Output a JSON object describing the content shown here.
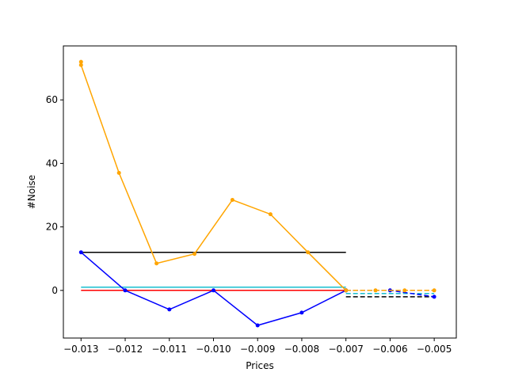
{
  "chart_data": {
    "type": "line",
    "title": "",
    "xlabel": "Prices",
    "ylabel": "#Noise",
    "xlim": [
      -0.0134,
      -0.0045
    ],
    "ylim": [
      -15,
      77
    ],
    "xticks": [
      -0.013,
      -0.012,
      -0.011,
      -0.01,
      -0.009,
      -0.008,
      -0.007,
      -0.006,
      -0.005
    ],
    "xtick_labels": [
      "−0.013",
      "−0.012",
      "−0.011",
      "−0.010",
      "−0.009",
      "−0.008",
      "−0.007",
      "−0.006",
      "−0.005"
    ],
    "yticks": [
      0,
      20,
      40,
      60
    ],
    "ytick_labels": [
      "0",
      "20",
      "40",
      "60"
    ],
    "grid": false,
    "legend": "none",
    "series": [
      {
        "color": "#000000",
        "style": "solid",
        "marker": false,
        "x": [
          -0.013,
          -0.007
        ],
        "y": [
          12,
          12
        ]
      },
      {
        "color": "#17becf",
        "style": "solid",
        "marker": false,
        "x": [
          -0.013,
          -0.007
        ],
        "y": [
          1,
          1
        ]
      },
      {
        "color": "#ff0000",
        "style": "solid",
        "marker": false,
        "x": [
          -0.013,
          -0.007
        ],
        "y": [
          0,
          0
        ]
      },
      {
        "color": "#ffa500",
        "style": "solid",
        "marker": true,
        "x": [
          -0.013,
          -0.013,
          -0.01214,
          -0.01129,
          -0.01043,
          -0.00957,
          -0.00871,
          -0.00786,
          -0.007
        ],
        "y": [
          72,
          71,
          37,
          8.5,
          11.5,
          28.5,
          24,
          12,
          0
        ]
      },
      {
        "color": "#0000ff",
        "style": "solid",
        "marker": true,
        "x": [
          -0.013,
          -0.012,
          -0.011,
          -0.01,
          -0.009,
          -0.008,
          -0.007
        ],
        "y": [
          12,
          0,
          -6,
          0,
          -11,
          -7,
          0
        ]
      },
      {
        "color": "#000000",
        "style": "dashed",
        "marker": false,
        "x": [
          -0.007,
          -0.005
        ],
        "y": [
          -2,
          -2
        ]
      },
      {
        "color": "#17becf",
        "style": "dashed",
        "marker": false,
        "x": [
          -0.007,
          -0.005
        ],
        "y": [
          -1,
          -1
        ]
      },
      {
        "color": "#ff0000",
        "style": "dashed",
        "marker": false,
        "x": [
          -0.007,
          -0.005
        ],
        "y": [
          0,
          0
        ]
      },
      {
        "color": "#0000ff",
        "style": "dashed",
        "marker": true,
        "x": [
          -0.007,
          -0.006,
          -0.005
        ],
        "y": [
          0,
          0,
          -2
        ]
      },
      {
        "color": "#ffa500",
        "style": "dashed",
        "marker": true,
        "x": [
          -0.007,
          -0.00633,
          -0.00567,
          -0.005
        ],
        "y": [
          0,
          0,
          0,
          0
        ]
      }
    ]
  }
}
